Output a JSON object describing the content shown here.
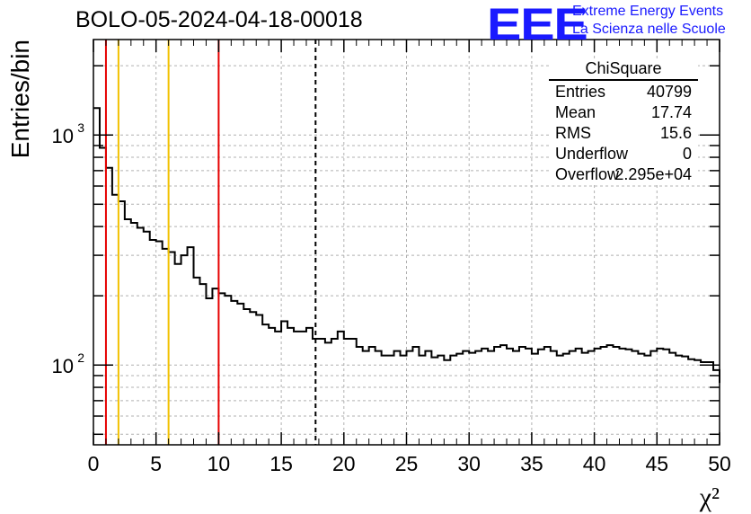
{
  "header": {
    "title": "BOLO-05-2024-04-18-00018",
    "logo_text": "EEE",
    "logo_line1": "Extreme Energy Events",
    "logo_line2": "La Scienza nelle Scuole"
  },
  "stats_box": {
    "title": "ChiSquare",
    "rows": [
      {
        "key": "Entries",
        "value": "40799"
      },
      {
        "key": "Mean",
        "value": "17.74"
      },
      {
        "key": "RMS",
        "value": "15.6"
      },
      {
        "key": "Underflow",
        "value": "0"
      },
      {
        "key": "Overflow",
        "value": "2.295e+04"
      }
    ]
  },
  "chart_data": {
    "type": "histogram",
    "title": "BOLO-05-2024-04-18-00018",
    "xlabel": "χ²",
    "ylabel": "Entries/bin",
    "xlim": [
      0,
      50
    ],
    "ylim": [
      45,
      2600
    ],
    "yscale": "log",
    "grid": true,
    "x_ticks": [
      0,
      5,
      10,
      15,
      20,
      25,
      30,
      35,
      40,
      45,
      50
    ],
    "y_tick_labels": [
      {
        "base": "10",
        "exp": "2",
        "value": 100
      },
      {
        "base": "10",
        "exp": "3",
        "value": 1000
      }
    ],
    "bin_width": 0.5,
    "values": [
      1310,
      880,
      720,
      550,
      515,
      430,
      415,
      395,
      380,
      350,
      345,
      320,
      310,
      275,
      300,
      325,
      240,
      225,
      195,
      215,
      205,
      200,
      190,
      185,
      175,
      170,
      165,
      150,
      145,
      140,
      155,
      145,
      140,
      140,
      145,
      130,
      130,
      125,
      130,
      140,
      130,
      130,
      120,
      115,
      120,
      115,
      110,
      110,
      115,
      110,
      115,
      120,
      110,
      115,
      108,
      110,
      105,
      110,
      112,
      115,
      113,
      115,
      118,
      115,
      120,
      122,
      118,
      115,
      120,
      118,
      112,
      117,
      120,
      115,
      110,
      112,
      115,
      118,
      113,
      115,
      118,
      120,
      122,
      120,
      118,
      117,
      115,
      112,
      110,
      115,
      118,
      117,
      113,
      110,
      109,
      106,
      105,
      103,
      103,
      95
    ],
    "vertical_lines": [
      {
        "x": 1,
        "color": "#e60000",
        "style": "solid"
      },
      {
        "x": 2,
        "color": "#f2c100",
        "style": "solid"
      },
      {
        "x": 6,
        "color": "#f2c100",
        "style": "solid"
      },
      {
        "x": 10,
        "color": "#e60000",
        "style": "solid"
      },
      {
        "x": 17.74,
        "color": "#000000",
        "style": "dashed"
      }
    ]
  }
}
